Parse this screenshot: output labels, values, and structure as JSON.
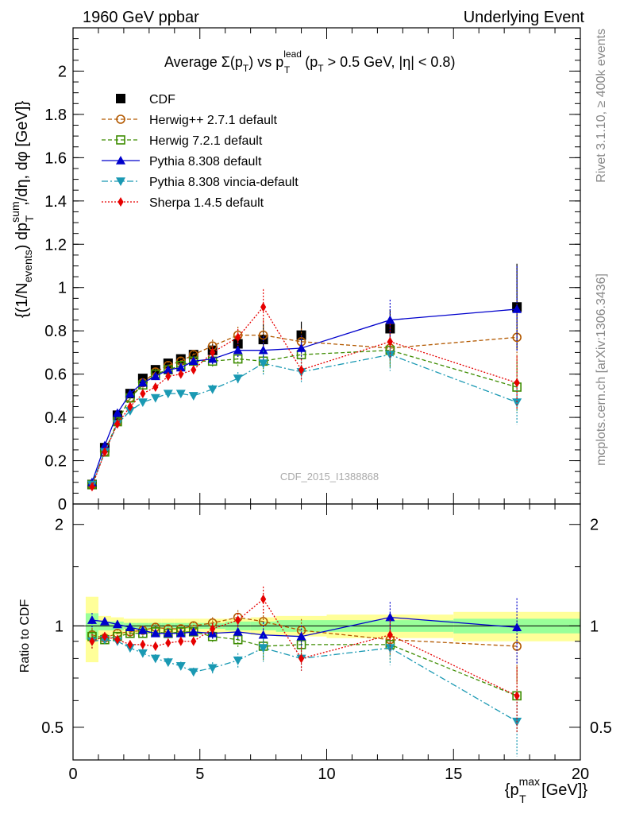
{
  "header": {
    "left": "1960 GeV ppbar",
    "right": "Underlying Event"
  },
  "side": {
    "rivet": "Rivet 3.1.10, ≥ 400k events",
    "mcplots": "mcplots.cern.ch [arXiv:1306.3436]"
  },
  "watermark": "CDF_2015_I1388868",
  "title": {
    "a": "Average",
    "sigma": "Σ(p",
    "sub_t": "T",
    "b": ") vs p",
    "sup_lead": "lead",
    "c": "(p",
    "d": " > 0.5 GeV, |η| < 0.8)"
  },
  "ylabel": {
    "a": "{(1/N",
    "sub_events": "events",
    "b": ") dp",
    "sup_sum": "sum",
    "sub_T": "T",
    "c": ",/dη, dφ [GeV]}"
  },
  "ratio_ylabel": "Ratio to CDF",
  "xlabel": {
    "a": "{p",
    "sup": "max",
    "sub": "T",
    "b": " [GeV]}"
  },
  "colors": {
    "CDF": "#000000",
    "Herwig++": "#b35900",
    "Herwig7": "#3d8c00",
    "Pythia": "#0000cc",
    "Vincia": "#1a99b3",
    "Sherpa": "#e60000",
    "band_inner": "#99ff99",
    "band_outer": "#ffff99"
  },
  "chart_data": {
    "type": "scatter",
    "xlim": [
      0,
      20
    ],
    "ylim": [
      0,
      2.2
    ],
    "ratio_ylim": [
      0.4,
      2.3
    ],
    "x_ticks": [
      "0",
      "5",
      "10",
      "15",
      "20"
    ],
    "y_ticks": [
      "0",
      "0.2",
      "0.4",
      "0.6",
      "0.8",
      "1",
      "1.2",
      "1.4",
      "1.6",
      "1.8",
      "2"
    ],
    "ratio_ticks": [
      "0.5",
      "1",
      "2"
    ],
    "x": [
      0.75,
      1.25,
      1.75,
      2.25,
      2.75,
      3.25,
      3.75,
      4.25,
      4.75,
      5.5,
      6.5,
      7.5,
      9.0,
      12.5,
      17.5
    ],
    "legend": "top-left",
    "series": [
      {
        "name": "CDF",
        "key": "CDF",
        "marker": "square",
        "line": "none",
        "values": [
          0.09,
          0.26,
          0.41,
          0.51,
          0.58,
          0.62,
          0.65,
          0.67,
          0.69,
          0.71,
          0.74,
          0.76,
          0.78,
          0.81,
          0.91
        ]
      },
      {
        "name": "Herwig++ 2.7.1 default",
        "key": "Herwig++",
        "marker": "circle-open",
        "line": "dashed",
        "values": [
          0.09,
          0.24,
          0.38,
          0.49,
          0.56,
          0.61,
          0.64,
          0.66,
          0.69,
          0.73,
          0.78,
          0.78,
          0.75,
          0.72,
          0.77
        ]
      },
      {
        "name": "Herwig 7.2.1 default",
        "key": "Herwig7",
        "marker": "square-open",
        "line": "dashed",
        "values": [
          0.09,
          0.24,
          0.38,
          0.49,
          0.55,
          0.6,
          0.62,
          0.64,
          0.66,
          0.66,
          0.67,
          0.66,
          0.69,
          0.71,
          0.54
        ]
      },
      {
        "name": "Pythia 8.308 default",
        "key": "Pythia",
        "marker": "triangle-up",
        "line": "solid",
        "values": [
          0.1,
          0.27,
          0.42,
          0.51,
          0.56,
          0.59,
          0.62,
          0.63,
          0.66,
          0.67,
          0.71,
          0.71,
          0.72,
          0.85,
          0.9
        ]
      },
      {
        "name": "Pythia 8.308 vincia-default",
        "key": "Vincia",
        "marker": "triangle-down",
        "line": "dashdot",
        "values": [
          0.09,
          0.24,
          0.37,
          0.43,
          0.47,
          0.49,
          0.51,
          0.51,
          0.5,
          0.53,
          0.58,
          0.65,
          0.61,
          0.69,
          0.47
        ]
      },
      {
        "name": "Sherpa 1.4.5 default",
        "key": "Sherpa",
        "marker": "diamond",
        "line": "dotted",
        "values": [
          0.08,
          0.24,
          0.37,
          0.45,
          0.51,
          0.54,
          0.59,
          0.6,
          0.62,
          0.7,
          0.77,
          0.91,
          0.62,
          0.75,
          0.56
        ]
      }
    ],
    "ratio": {
      "CDF": [
        1,
        1,
        1,
        1,
        1,
        1,
        1,
        1,
        1,
        1,
        1,
        1,
        1,
        1,
        1
      ],
      "Herwig++": [
        0.94,
        0.92,
        0.95,
        0.96,
        0.97,
        0.99,
        0.98,
        0.98,
        1.0,
        1.02,
        1.06,
        1.03,
        0.97,
        0.91,
        0.87
      ],
      "Herwig7": [
        0.93,
        0.91,
        0.93,
        0.95,
        0.95,
        0.96,
        0.95,
        0.96,
        0.96,
        0.93,
        0.91,
        0.87,
        0.88,
        0.88,
        0.62
      ],
      "Pythia": [
        1.04,
        1.03,
        1.01,
        0.99,
        0.97,
        0.95,
        0.95,
        0.95,
        0.96,
        0.95,
        0.96,
        0.94,
        0.93,
        1.06,
        0.99
      ],
      "Vincia": [
        0.9,
        0.91,
        0.9,
        0.86,
        0.83,
        0.8,
        0.78,
        0.76,
        0.73,
        0.75,
        0.79,
        0.86,
        0.8,
        0.86,
        0.52
      ],
      "Sherpa": [
        0.9,
        0.93,
        0.91,
        0.88,
        0.88,
        0.87,
        0.89,
        0.9,
        0.9,
        0.98,
        1.04,
        1.2,
        0.8,
        0.94,
        0.62
      ]
    }
  }
}
